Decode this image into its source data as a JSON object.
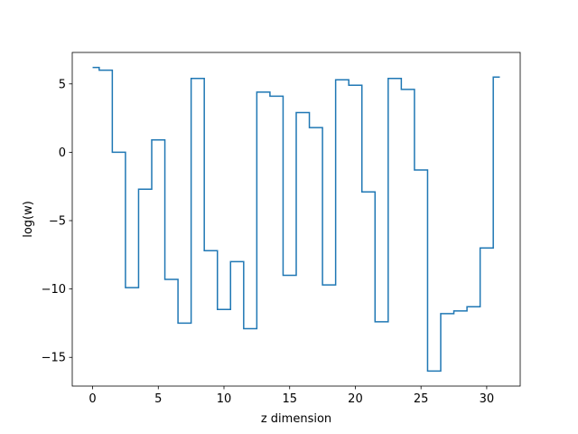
{
  "chart_data": {
    "type": "line",
    "style": "step-mid",
    "title": "",
    "xlabel": "z dimension",
    "ylabel": "log(w)",
    "xlim": [
      -1.55,
      32.55
    ],
    "ylim": [
      -17.1,
      7.3
    ],
    "xticks": [
      0,
      5,
      10,
      15,
      20,
      25,
      30
    ],
    "yticks": [
      -15,
      -10,
      -5,
      0,
      5
    ],
    "tick_labels_x": [
      "0",
      "5",
      "10",
      "15",
      "20",
      "25",
      "30"
    ],
    "tick_labels_y": [
      "−15",
      "−10",
      "−5",
      "0",
      "5"
    ],
    "grid": false,
    "series": [
      {
        "color": "#1f77b4",
        "x": [
          0,
          1,
          2,
          3,
          4,
          5,
          6,
          7,
          8,
          9,
          10,
          11,
          12,
          13,
          14,
          15,
          16,
          17,
          18,
          19,
          20,
          21,
          22,
          23,
          24,
          25,
          26,
          27,
          28,
          29,
          30,
          31
        ],
        "values": [
          6.2,
          6.0,
          0.0,
          -9.9,
          -2.7,
          0.9,
          -9.3,
          -12.5,
          5.4,
          -7.2,
          -11.5,
          -8.0,
          -12.9,
          4.4,
          4.1,
          -9.0,
          2.9,
          1.8,
          -9.7,
          5.3,
          4.9,
          -2.9,
          -12.4,
          5.4,
          4.6,
          -1.3,
          -16.0,
          -11.8,
          -11.6,
          -11.3,
          -7.0,
          5.5
        ]
      }
    ]
  }
}
